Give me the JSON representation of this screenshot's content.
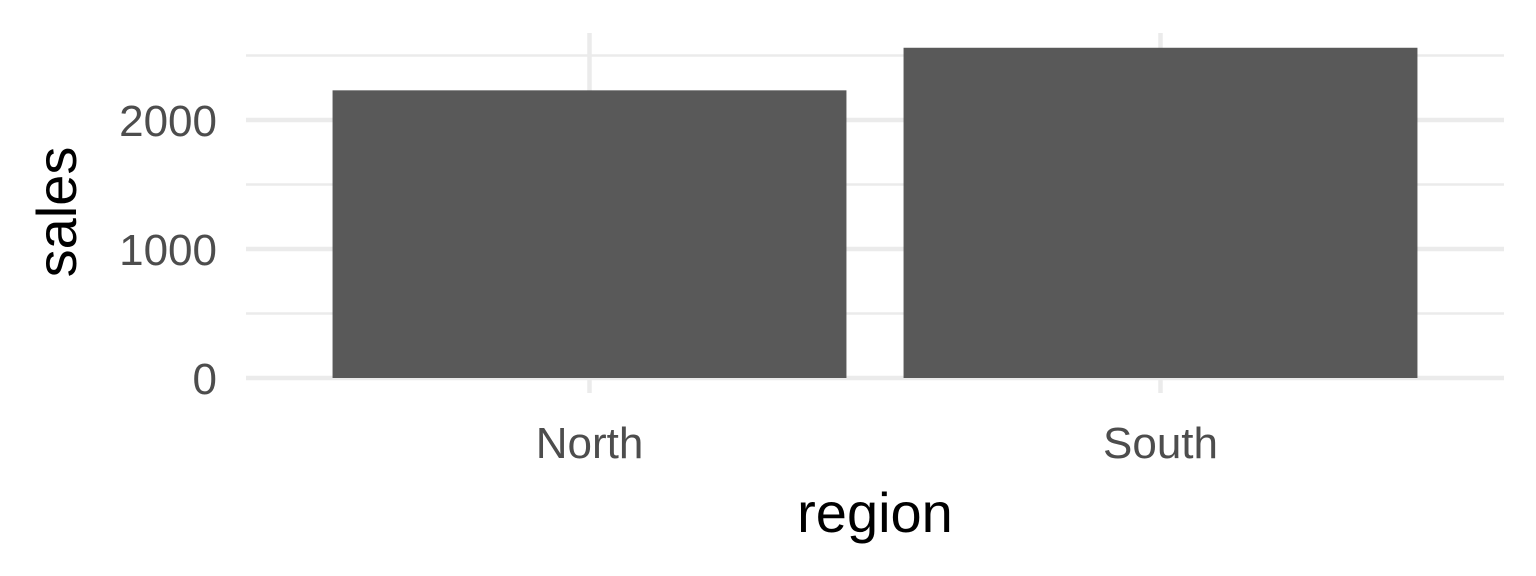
{
  "chart_data": {
    "type": "bar",
    "categories": [
      "North",
      "South"
    ],
    "values": [
      2230,
      2560
    ],
    "xlabel": "region",
    "ylabel": "sales",
    "ylim": [
      0,
      2600
    ],
    "yticks": [
      0,
      1000,
      2000
    ],
    "grid": true,
    "legend": "none",
    "colors": {
      "bar": "#595959",
      "grid": "#ebebeb",
      "tick_text": "#4d4d4d",
      "axis_title": "#000000",
      "background": "#ffffff"
    }
  }
}
